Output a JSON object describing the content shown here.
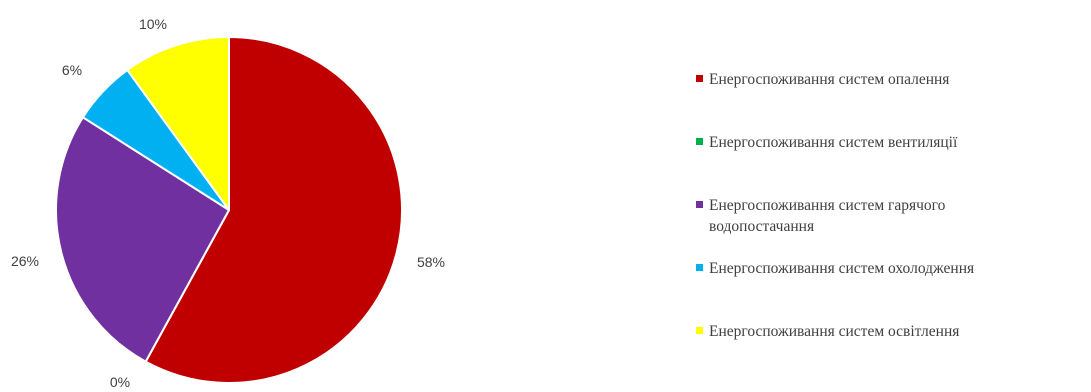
{
  "chart_data": {
    "type": "pie",
    "categories": [
      "Енергоспоживання систем опалення",
      "Енергоспоживання систем вентиляції",
      "Енергоспоживання систем гарячого водопостачання",
      "Енергоспоживання систем охолодження",
      "Енергоспоживання систем освітлення"
    ],
    "legend_lines": [
      [
        "Енергоспоживання систем опалення"
      ],
      [
        "Енергоспоживання систем вентиляції"
      ],
      [
        "Енергоспоживання систем гарячого",
        "водопостачання"
      ],
      [
        "Енергоспоживання систем охолодження"
      ],
      [
        "Енергоспоживання систем освітлення"
      ]
    ],
    "values": [
      58,
      0,
      26,
      6,
      10
    ],
    "labels": [
      "58%",
      "0%",
      "26%",
      "6%",
      "10%"
    ],
    "colors": [
      "#c00000",
      "#00b050",
      "#7030a0",
      "#00b0f0",
      "#ffff00"
    ],
    "legend_position": "right",
    "start_angle": "12 o'clock, clockwise"
  }
}
